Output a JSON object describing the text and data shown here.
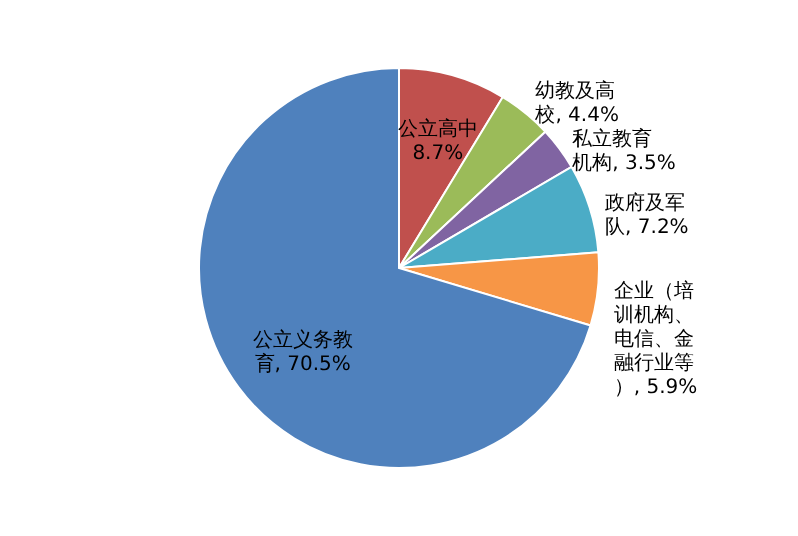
{
  "chart_data": {
    "type": "pie",
    "categories": [
      "公立高中",
      "幼教及高校",
      "私立教育机构",
      "政府及军队",
      "企业（培训机构、电信、金融行业等）",
      "公立义务教育"
    ],
    "values": [
      8.7,
      4.4,
      3.5,
      7.2,
      5.9,
      70.5
    ],
    "value_labels": [
      "8.7%",
      "4.4%",
      "3.5%",
      "7.2%",
      "5.9%",
      "70.5%"
    ],
    "colors": [
      "#c0504d",
      "#9bbb59",
      "#8064a2",
      "#4bacc6",
      "#f79646",
      "#4f81bd"
    ],
    "legend": false
  }
}
